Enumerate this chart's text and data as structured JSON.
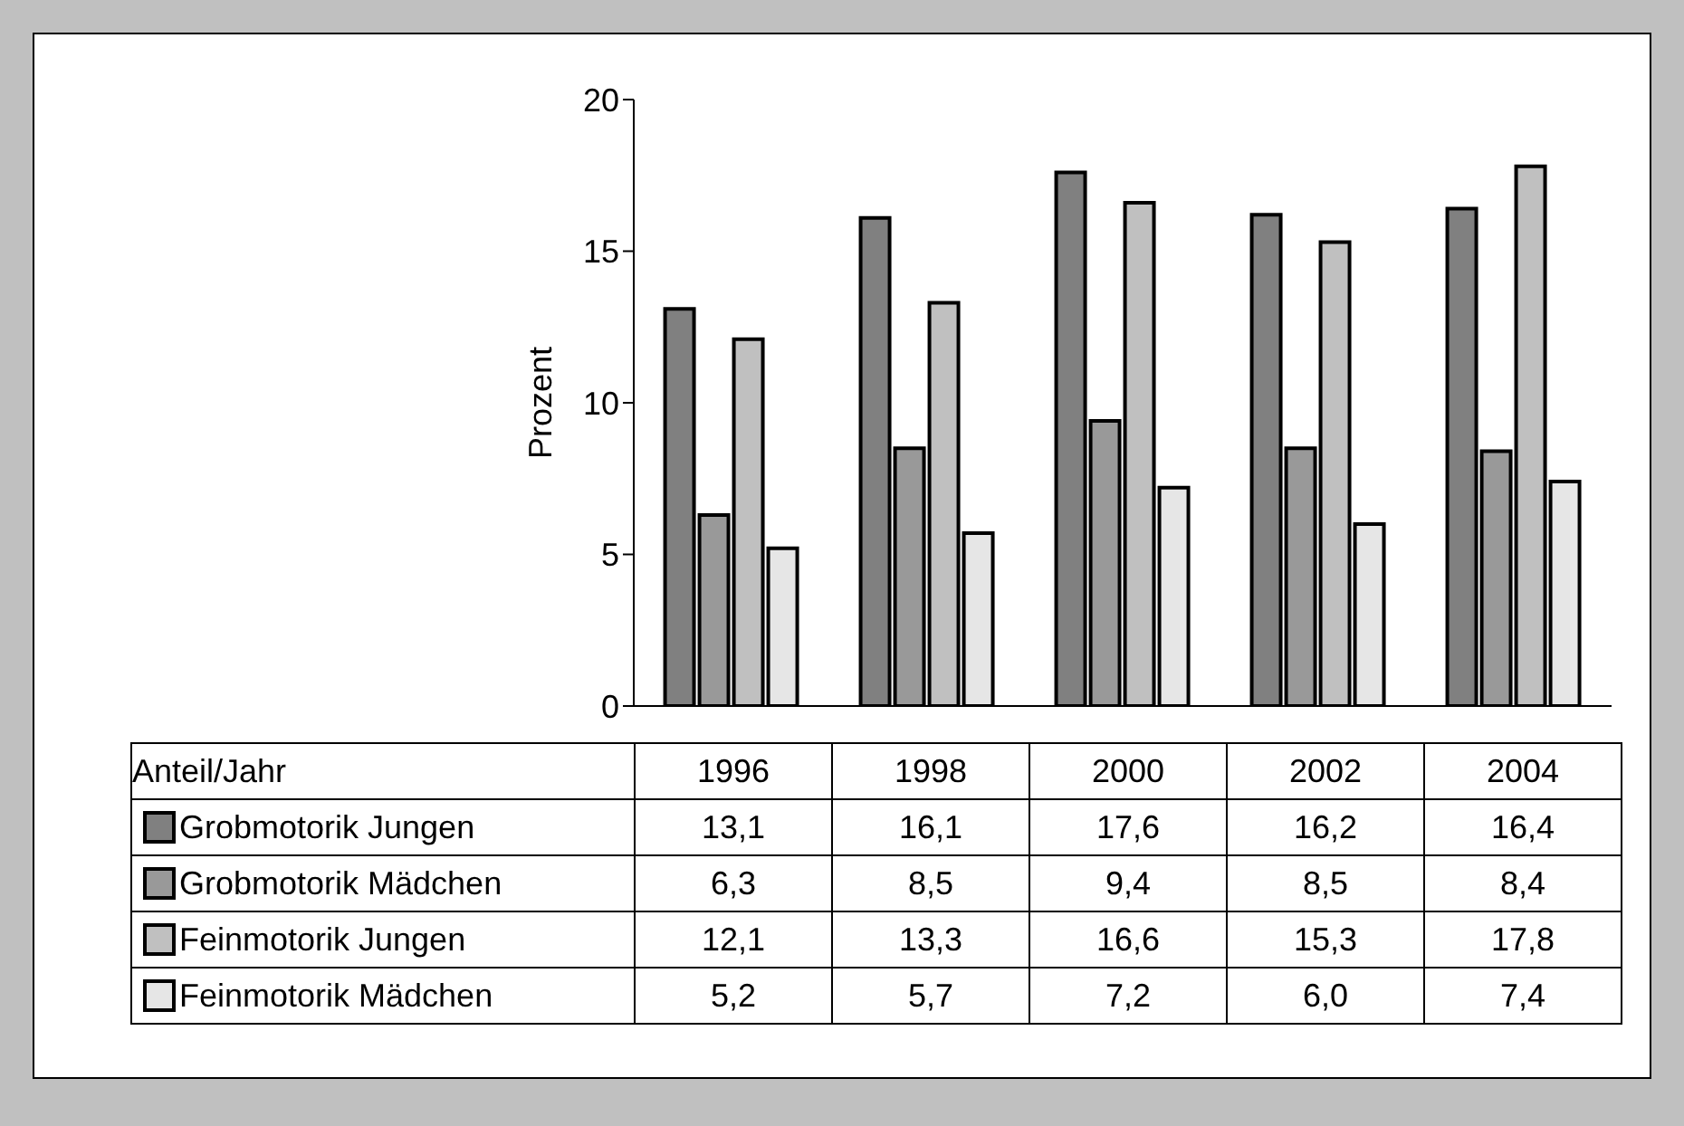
{
  "chart_data": {
    "type": "bar",
    "ylabel": "Prozent",
    "legend_title": "Anteil/Jahr",
    "categories": [
      "1996",
      "1998",
      "2000",
      "2002",
      "2004"
    ],
    "series": [
      {
        "name": "Grobmotorik Jungen",
        "color": "#808080",
        "values": [
          13.1,
          16.1,
          17.6,
          16.2,
          16.4
        ],
        "value_labels": [
          "13,1",
          "16,1",
          "17,6",
          "16,2",
          "16,4"
        ]
      },
      {
        "name": "Grobmotorik Mädchen",
        "color": "#999999",
        "values": [
          6.3,
          8.5,
          9.4,
          8.5,
          8.4
        ],
        "value_labels": [
          "6,3",
          "8,5",
          "9,4",
          "8,5",
          "8,4"
        ]
      },
      {
        "name": "Feinmotorik Jungen",
        "color": "#c0c0c0",
        "values": [
          12.1,
          13.3,
          16.6,
          15.3,
          17.8
        ],
        "value_labels": [
          "12,1",
          "13,3",
          "16,6",
          "15,3",
          "17,8"
        ]
      },
      {
        "name": "Feinmotorik Mädchen",
        "color": "#e6e6e6",
        "values": [
          5.2,
          5.7,
          7.2,
          6.0,
          7.4
        ],
        "value_labels": [
          "5,2",
          "5,7",
          "7,2",
          "6,0",
          "7,4"
        ]
      }
    ],
    "ylim": [
      0,
      20
    ],
    "yticks": [
      0,
      5,
      10,
      15,
      20
    ],
    "legend": "bottom"
  }
}
